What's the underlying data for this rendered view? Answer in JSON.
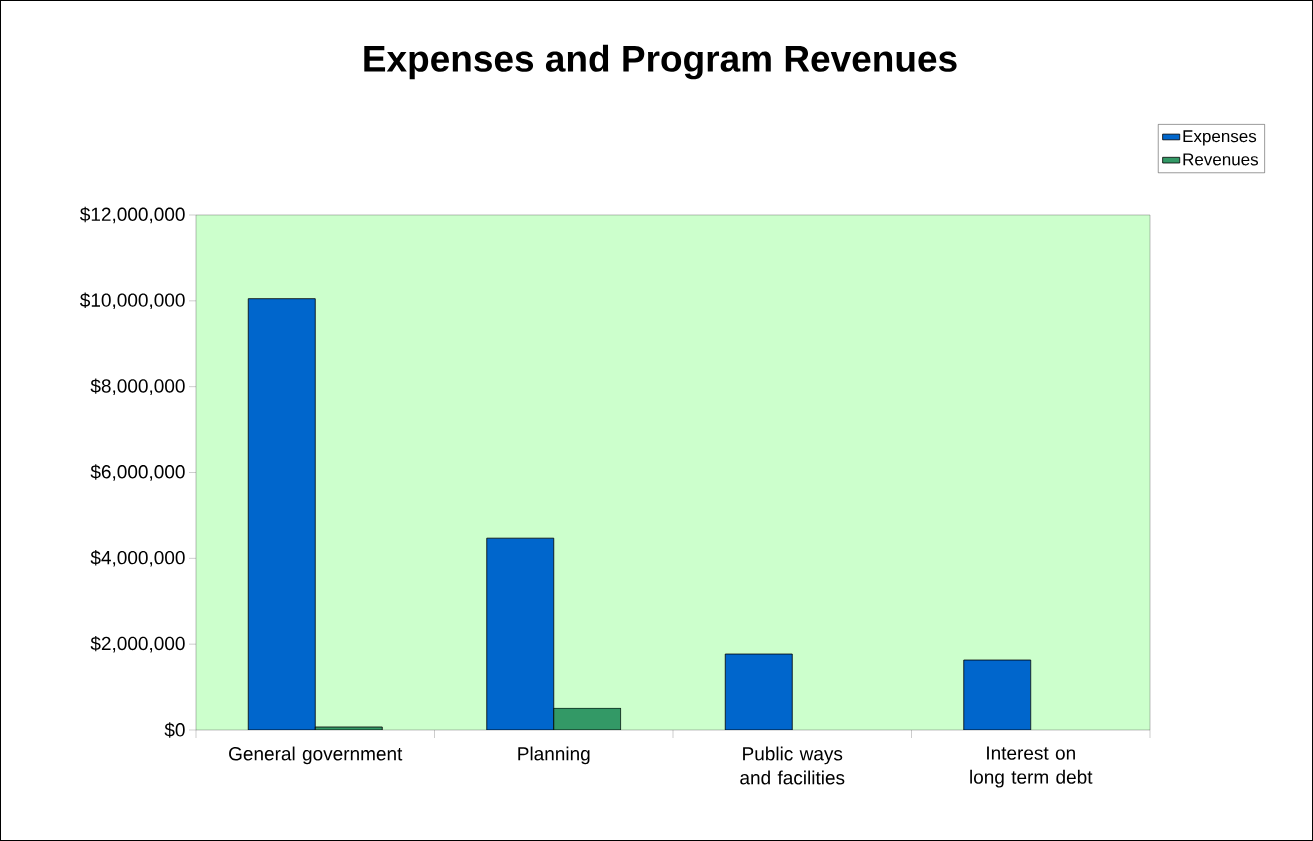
{
  "chart_data": {
    "type": "bar",
    "title": "Expenses and Program Revenues",
    "categories": [
      "General government",
      "Planning",
      "Public ways and facilities",
      "Interest on long term debt"
    ],
    "series": [
      {
        "name": "Expenses",
        "color": "#0066cc",
        "values": [
          10050000,
          4470000,
          1770000,
          1630000
        ]
      },
      {
        "name": "Revenues",
        "color": "#339966",
        "values": [
          70000,
          510000,
          0,
          0
        ]
      }
    ],
    "ylim": [
      0,
      12000000
    ],
    "yticks": [
      {
        "value": 0,
        "label": "$0"
      },
      {
        "value": 2000000,
        "label": "$2,000,000"
      },
      {
        "value": 4000000,
        "label": "$4,000,000"
      },
      {
        "value": 6000000,
        "label": "$6,000,000"
      },
      {
        "value": 8000000,
        "label": "$8,000,000"
      },
      {
        "value": 10000000,
        "label": "$10,000,000"
      },
      {
        "value": 12000000,
        "label": "$12,000,000"
      }
    ],
    "legend": "top right"
  }
}
